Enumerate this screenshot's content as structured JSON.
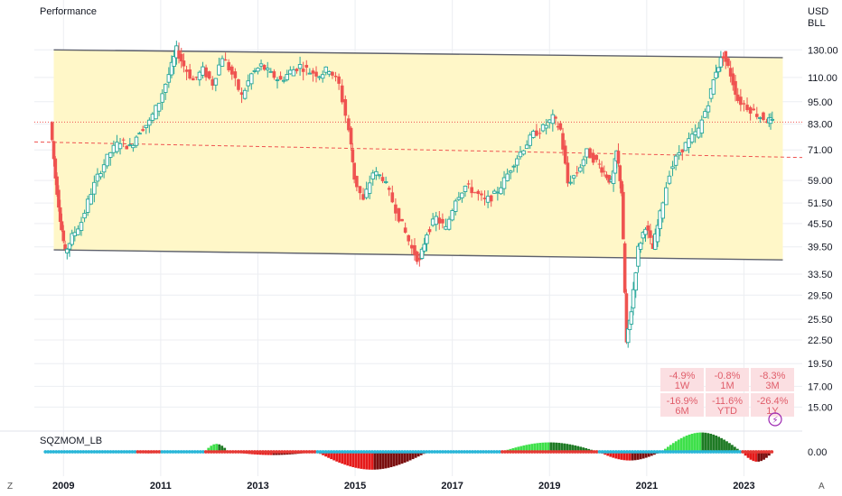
{
  "chart_data": {
    "type": "candlestick",
    "title": "Performance",
    "currency": "USD",
    "symbol": "BLL",
    "x_ticks": [
      "2009",
      "2011",
      "2013",
      "2015",
      "2017",
      "2019",
      "2021",
      "2023"
    ],
    "y_ticks": [
      "130.00",
      "110.00",
      "95.00",
      "83.00",
      "71.00",
      "59.00",
      "51.50",
      "45.50",
      "39.50",
      "33.50",
      "29.50",
      "25.50",
      "22.50",
      "19.50",
      "17.00",
      "15.00"
    ],
    "y_tick_values": [
      130,
      110,
      95,
      83,
      71,
      59,
      51.5,
      45.5,
      39.5,
      33.5,
      29.5,
      25.5,
      22.5,
      19.5,
      17,
      15
    ],
    "scale": "log",
    "channel": {
      "upper": [
        {
          "year": 2008.8,
          "value": 130
        },
        {
          "year": 2023.8,
          "value": 124
        }
      ],
      "lower": [
        {
          "year": 2008.8,
          "value": 38.8
        },
        {
          "year": 2023.8,
          "value": 36.5
        }
      ]
    },
    "current_price_line": 84.0,
    "dashed_level": {
      "start": 74.5,
      "end": 67.8
    },
    "price_path": [
      [
        2008.75,
        84
      ],
      [
        2008.85,
        60
      ],
      [
        2008.95,
        47
      ],
      [
        2009.05,
        38
      ],
      [
        2009.2,
        42
      ],
      [
        2009.4,
        46
      ],
      [
        2009.6,
        55
      ],
      [
        2009.8,
        63
      ],
      [
        2010.0,
        70
      ],
      [
        2010.2,
        75
      ],
      [
        2010.4,
        72
      ],
      [
        2010.6,
        80
      ],
      [
        2010.8,
        84
      ],
      [
        2011.0,
        95
      ],
      [
        2011.2,
        112
      ],
      [
        2011.35,
        130
      ],
      [
        2011.5,
        118
      ],
      [
        2011.7,
        108
      ],
      [
        2011.9,
        115
      ],
      [
        2012.1,
        106
      ],
      [
        2012.3,
        125
      ],
      [
        2012.5,
        112
      ],
      [
        2012.7,
        98
      ],
      [
        2012.9,
        112
      ],
      [
        2013.1,
        118
      ],
      [
        2013.3,
        112
      ],
      [
        2013.5,
        108
      ],
      [
        2013.7,
        114
      ],
      [
        2013.9,
        118
      ],
      [
        2014.1,
        114
      ],
      [
        2014.3,
        112
      ],
      [
        2014.5,
        116
      ],
      [
        2014.7,
        105
      ],
      [
        2014.9,
        80
      ],
      [
        2015.0,
        60
      ],
      [
        2015.2,
        52
      ],
      [
        2015.4,
        62
      ],
      [
        2015.6,
        60
      ],
      [
        2015.8,
        52
      ],
      [
        2016.0,
        45
      ],
      [
        2016.2,
        39
      ],
      [
        2016.35,
        36
      ],
      [
        2016.5,
        43
      ],
      [
        2016.7,
        47
      ],
      [
        2016.9,
        44
      ],
      [
        2017.1,
        53
      ],
      [
        2017.3,
        57
      ],
      [
        2017.5,
        55
      ],
      [
        2017.7,
        52
      ],
      [
        2017.9,
        54
      ],
      [
        2018.1,
        59
      ],
      [
        2018.3,
        66
      ],
      [
        2018.5,
        72
      ],
      [
        2018.7,
        78
      ],
      [
        2018.9,
        81
      ],
      [
        2019.1,
        86
      ],
      [
        2019.25,
        80
      ],
      [
        2019.4,
        58
      ],
      [
        2019.6,
        62
      ],
      [
        2019.8,
        70
      ],
      [
        2020.0,
        66
      ],
      [
        2020.15,
        62
      ],
      [
        2020.3,
        58
      ],
      [
        2020.4,
        70
      ],
      [
        2020.5,
        55
      ],
      [
        2020.6,
        22
      ],
      [
        2020.7,
        27
      ],
      [
        2020.85,
        39
      ],
      [
        2021.0,
        45
      ],
      [
        2021.15,
        39
      ],
      [
        2021.3,
        48
      ],
      [
        2021.5,
        62
      ],
      [
        2021.7,
        70
      ],
      [
        2021.9,
        75
      ],
      [
        2022.1,
        80
      ],
      [
        2022.3,
        95
      ],
      [
        2022.45,
        115
      ],
      [
        2022.6,
        126
      ],
      [
        2022.75,
        112
      ],
      [
        2022.9,
        96
      ],
      [
        2023.1,
        92
      ],
      [
        2023.3,
        88
      ],
      [
        2023.5,
        85
      ],
      [
        2023.6,
        84
      ]
    ],
    "indicator": {
      "name": "SQZMOM_LB",
      "zero_label": "0.00",
      "scale_max": 8,
      "segments": [
        {
          "from": 2008.6,
          "to": 2010.5,
          "peak": 0,
          "dot": "blue"
        },
        {
          "from": 2010.5,
          "to": 2011.0,
          "peak": -0.6,
          "dot": "red"
        },
        {
          "from": 2011.0,
          "to": 2011.9,
          "peak": -0.3,
          "dot": "blue"
        },
        {
          "from": 2011.9,
          "to": 2012.4,
          "peak": 3.2,
          "dot": "red"
        },
        {
          "from": 2012.4,
          "to": 2014.2,
          "peak": -1.3,
          "dot": "red"
        },
        {
          "from": 2014.2,
          "to": 2016.5,
          "peak": -7.2,
          "dot": "blue"
        },
        {
          "from": 2016.5,
          "to": 2018.0,
          "peak": -0.5,
          "dot": "blue"
        },
        {
          "from": 2018.0,
          "to": 2020.0,
          "peak": 3.8,
          "dot": "red"
        },
        {
          "from": 2020.0,
          "to": 2021.3,
          "peak": -3.5,
          "dot": "blue"
        },
        {
          "from": 2021.3,
          "to": 2022.95,
          "peak": 7.8,
          "dot": "blue"
        },
        {
          "from": 2022.95,
          "to": 2023.6,
          "peak": -4.0,
          "dot": "red"
        }
      ]
    },
    "performance": [
      {
        "value": "-4.9%",
        "label": "1W"
      },
      {
        "value": "-0.8%",
        "label": "1M"
      },
      {
        "value": "-8.3%",
        "label": "3M"
      },
      {
        "value": "-16.9%",
        "label": "6M"
      },
      {
        "value": "-11.6%",
        "label": "YTD"
      },
      {
        "value": "-26.4%",
        "label": "1Y"
      }
    ],
    "colors": {
      "up": "#26a69a",
      "down": "#ef5350",
      "channel_fill": "#fff7c8",
      "channel_line": "#5d606b",
      "grid": "#eceef2",
      "perf_bg": "#fbdfe2",
      "perf_text": "#e05d6a",
      "hist_up_strong": "#3ee04a",
      "hist_up_weak": "#1e7a24",
      "hist_down_strong": "#e51a1a",
      "hist_down_weak": "#7a0f0f",
      "dot_blue": "#29b6d8",
      "dot_red": "#e53935"
    }
  },
  "ui": {
    "corner_left": "Z",
    "corner_right": "A",
    "lightning_icon": "⚡"
  }
}
